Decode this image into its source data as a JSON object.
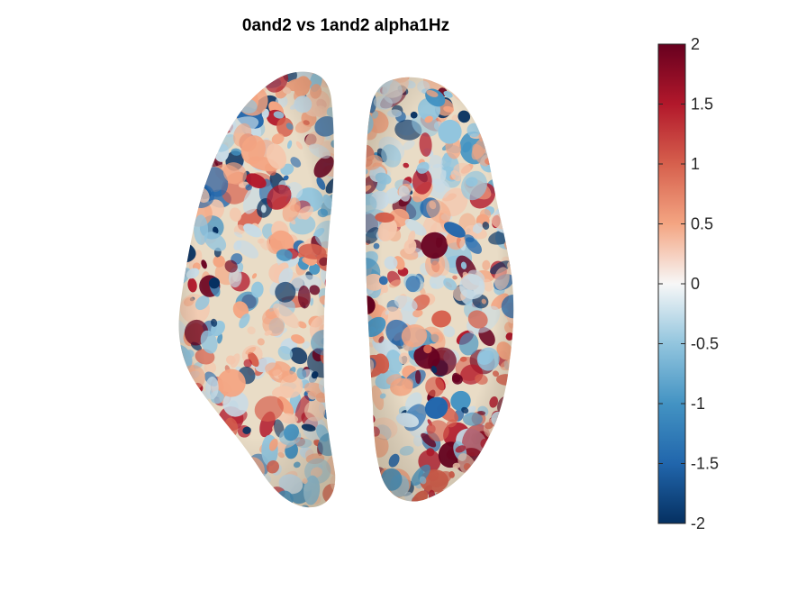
{
  "figure": {
    "title": "0and2 vs 1and2 alpha1Hz",
    "colormap": "RdBu (reversed: blue negative, red positive)",
    "colors": {
      "min": "#053061",
      "neg_mid": "#4393c3",
      "zero": "#f7f7f7",
      "pos_mid": "#f4a582",
      "max": "#67001f",
      "surface_base": "#e9dcc6"
    },
    "hemispheres": [
      "left",
      "right"
    ]
  },
  "colorbar": {
    "range": [
      -2,
      2
    ],
    "ticks": [
      {
        "value": 2,
        "label": "2"
      },
      {
        "value": 1.5,
        "label": "1.5"
      },
      {
        "value": 1,
        "label": "1"
      },
      {
        "value": 0.5,
        "label": "0.5"
      },
      {
        "value": 0,
        "label": "0"
      },
      {
        "value": -0.5,
        "label": "-0.5"
      },
      {
        "value": -1,
        "label": "-1"
      },
      {
        "value": -1.5,
        "label": "-1.5"
      },
      {
        "value": -2,
        "label": "-2"
      }
    ]
  }
}
